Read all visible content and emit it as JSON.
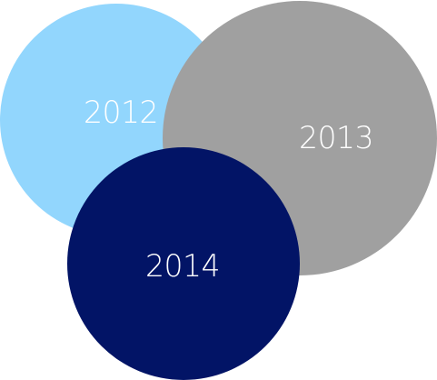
{
  "circles": [
    {
      "id": "circle-2012",
      "label": "2012",
      "color": "#92d6fd"
    },
    {
      "id": "circle-2013",
      "label": "2013",
      "color": "#a0a0a0"
    },
    {
      "id": "circle-2014",
      "label": "2014",
      "color": "#021466"
    }
  ]
}
